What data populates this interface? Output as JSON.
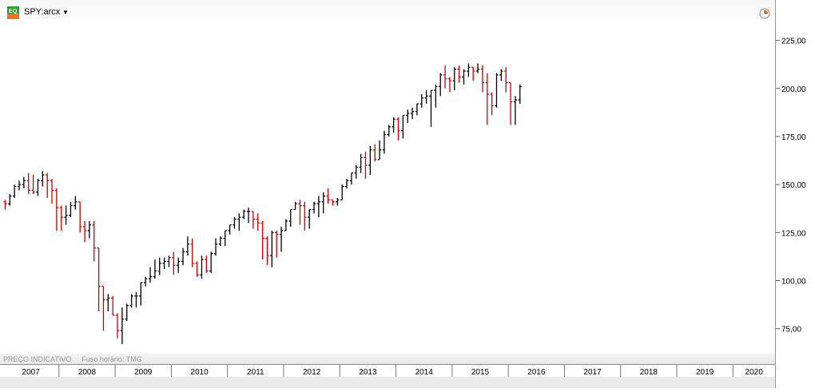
{
  "header": {
    "symbol": "SPY:arcx",
    "app_icon": "eq-logo-icon",
    "dropdown_icon": "chevron-down-icon",
    "clock_icon": "clock-icon"
  },
  "footer": {
    "price_note": "PREÇO INDICATIVO",
    "timezone": "Fuso horário: TMG"
  },
  "colors": {
    "up": "#000000",
    "down": "#cc0000"
  },
  "chart_data": {
    "type": "ohlc",
    "period": "monthly",
    "ylim": [
      62,
      246
    ],
    "xlim": [
      2006.95,
      2020.75
    ],
    "yticks": [
      75,
      100,
      125,
      150,
      175,
      200,
      225
    ],
    "ytick_labels": [
      "75,00",
      "100,00",
      "125,00",
      "150,00",
      "175,00",
      "200,00",
      "225,00"
    ],
    "xticks": [
      "2007",
      "2008",
      "2009",
      "2010",
      "2011",
      "2012",
      "2013",
      "2014",
      "2015",
      "2016",
      "2017",
      "2018",
      "2019",
      "2020"
    ],
    "grid": false,
    "columns": [
      "open",
      "high",
      "low",
      "close"
    ],
    "bars": [
      [
        141,
        142,
        137,
        140
      ],
      [
        140,
        145,
        139,
        144
      ],
      [
        144,
        150,
        143,
        149
      ],
      [
        149,
        152,
        147,
        150
      ],
      [
        150,
        154,
        148,
        152
      ],
      [
        152,
        156,
        145,
        147
      ],
      [
        147,
        155,
        145,
        146
      ],
      [
        146,
        153,
        144,
        152
      ],
      [
        152,
        157,
        149,
        155
      ],
      [
        155,
        156,
        143,
        152
      ],
      [
        152,
        153,
        140,
        147
      ],
      [
        147,
        148,
        126,
        138
      ],
      [
        138,
        139,
        126,
        133
      ],
      [
        133,
        139,
        129,
        134
      ],
      [
        134,
        141,
        133,
        139
      ],
      [
        139,
        144,
        137,
        141
      ],
      [
        141,
        141,
        125,
        128
      ],
      [
        128,
        131,
        120,
        126
      ],
      [
        126,
        131,
        122,
        129
      ],
      [
        129,
        131,
        110,
        117
      ],
      [
        117,
        117,
        84,
        97
      ],
      [
        97,
        97,
        74,
        90
      ],
      [
        90,
        93,
        84,
        91
      ],
      [
        91,
        92,
        82,
        82
      ],
      [
        82,
        83,
        70,
        74
      ],
      [
        74,
        86,
        67,
        80
      ],
      [
        80,
        88,
        79,
        87
      ],
      [
        87,
        93,
        86,
        92
      ],
      [
        92,
        94,
        86,
        92
      ],
      [
        92,
        99,
        87,
        99
      ],
      [
        99,
        102,
        97,
        101
      ],
      [
        101,
        107,
        99,
        102
      ],
      [
        102,
        111,
        101,
        105
      ],
      [
        105,
        112,
        103,
        109
      ],
      [
        109,
        112,
        106,
        110
      ],
      [
        110,
        113,
        107,
        112
      ],
      [
        112,
        115,
        103,
        108
      ],
      [
        108,
        112,
        104,
        110
      ],
      [
        110,
        117,
        108,
        115
      ],
      [
        115,
        123,
        113,
        119
      ],
      [
        119,
        122,
        107,
        109
      ],
      [
        109,
        110,
        102,
        103
      ],
      [
        103,
        113,
        101,
        111
      ],
      [
        111,
        113,
        104,
        105
      ],
      [
        105,
        115,
        104,
        114
      ],
      [
        114,
        122,
        113,
        119
      ],
      [
        119,
        123,
        118,
        122
      ],
      [
        122,
        126,
        118,
        126
      ],
      [
        126,
        129,
        124,
        129
      ],
      [
        129,
        133,
        127,
        132
      ],
      [
        132,
        135,
        126,
        133
      ],
      [
        133,
        137,
        132,
        136
      ],
      [
        136,
        138,
        130,
        136
      ],
      [
        136,
        136,
        127,
        132
      ],
      [
        132,
        135,
        126,
        130
      ],
      [
        130,
        131,
        111,
        122
      ],
      [
        122,
        123,
        108,
        113
      ],
      [
        113,
        126,
        107,
        125
      ],
      [
        125,
        126,
        112,
        124
      ],
      [
        124,
        128,
        115,
        126
      ],
      [
        126,
        132,
        126,
        131
      ],
      [
        131,
        137,
        128,
        137
      ],
      [
        137,
        141,
        137,
        140
      ],
      [
        140,
        142,
        129,
        139
      ],
      [
        139,
        141,
        126,
        133
      ],
      [
        133,
        137,
        127,
        137
      ],
      [
        137,
        141,
        135,
        140
      ],
      [
        140,
        144,
        133,
        141
      ],
      [
        141,
        146,
        135,
        144
      ],
      [
        144,
        148,
        140,
        142
      ],
      [
        142,
        142,
        139,
        141
      ],
      [
        141,
        143,
        139,
        142
      ],
      [
        142,
        150,
        142,
        149
      ],
      [
        149,
        153,
        148,
        152
      ],
      [
        152,
        156,
        150,
        156
      ],
      [
        156,
        160,
        153,
        159
      ],
      [
        159,
        166,
        156,
        164
      ],
      [
        164,
        167,
        153,
        160
      ],
      [
        160,
        170,
        155,
        168
      ],
      [
        168,
        171,
        162,
        163
      ],
      [
        163,
        173,
        163,
        168
      ],
      [
        168,
        178,
        166,
        176
      ],
      [
        176,
        181,
        175,
        180
      ],
      [
        180,
        185,
        177,
        184
      ],
      [
        184,
        185,
        173,
        178
      ],
      [
        178,
        186,
        174,
        186
      ],
      [
        186,
        189,
        182,
        187
      ],
      [
        187,
        190,
        184,
        188
      ],
      [
        188,
        192,
        186,
        192
      ],
      [
        192,
        197,
        190,
        195
      ],
      [
        195,
        199,
        192,
        196
      ],
      [
        196,
        199,
        180,
        199
      ],
      [
        199,
        202,
        190,
        201
      ],
      [
        201,
        208,
        196,
        207
      ],
      [
        207,
        212,
        200,
        205
      ],
      [
        205,
        206,
        198,
        204
      ],
      [
        204,
        211,
        199,
        210
      ],
      [
        210,
        212,
        203,
        206
      ],
      [
        206,
        210,
        202,
        209
      ],
      [
        209,
        213,
        206,
        211
      ],
      [
        211,
        211,
        204,
        209
      ],
      [
        209,
        213,
        208,
        210
      ],
      [
        210,
        212,
        198,
        203
      ],
      [
        203,
        208,
        181,
        197
      ],
      [
        197,
        198,
        186,
        191
      ],
      [
        191,
        208,
        190,
        207
      ],
      [
        207,
        210,
        204,
        209
      ],
      [
        209,
        211,
        198,
        203
      ],
      [
        203,
        203,
        181,
        193
      ],
      [
        193,
        196,
        181,
        194
      ],
      [
        194,
        202,
        192,
        201
      ]
    ]
  }
}
